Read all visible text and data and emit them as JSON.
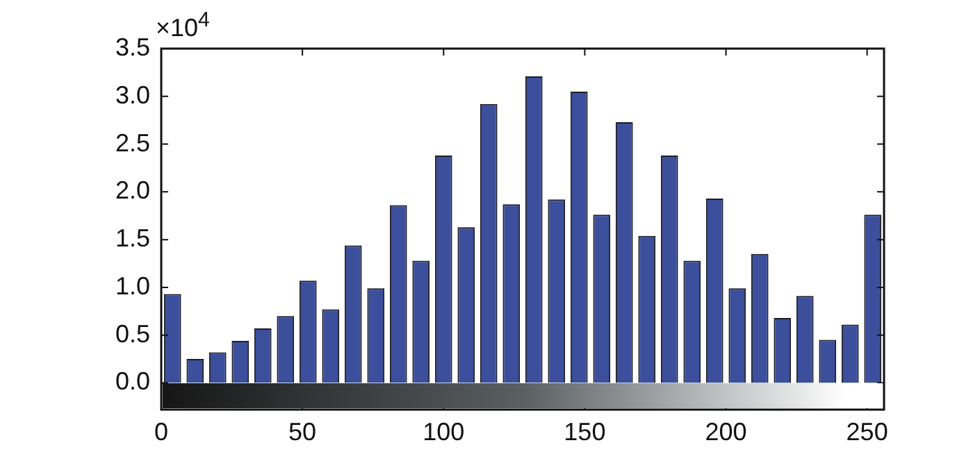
{
  "chart_data": {
    "type": "histogram",
    "bins": [
      0,
      8,
      16,
      24,
      32,
      40,
      48,
      56,
      64,
      72,
      80,
      88,
      96,
      104,
      112,
      120,
      128,
      136,
      144,
      152,
      160,
      168,
      176,
      184,
      192,
      200,
      208,
      216,
      224,
      232,
      240,
      248,
      256
    ],
    "values": [
      0.93,
      0.25,
      0.32,
      0.44,
      0.57,
      0.7,
      1.07,
      0.77,
      1.44,
      0.99,
      1.86,
      1.28,
      2.38,
      1.63,
      2.92,
      1.87,
      3.21,
      1.92,
      3.05,
      1.76,
      2.73,
      1.54,
      2.38,
      1.28,
      1.93,
      0.99,
      1.35,
      0.68,
      0.91,
      0.45,
      0.61,
      1.76
    ],
    "color": "#3b4f9c",
    "xlim": [
      0,
      256
    ],
    "xticks": [
      0,
      50,
      100,
      150,
      200,
      250
    ],
    "ylim": [
      -0.28,
      3.5
    ],
    "yticks": [
      {
        "value": 0,
        "label": "0.0"
      },
      0.5,
      {
        "value": 1,
        "label": "1.0"
      },
      1.5,
      {
        "value": 2,
        "label": "2.0"
      },
      2.5,
      {
        "value": 3,
        "label": "3.0"
      },
      3.5
    ],
    "annotations": [
      "×10$^{4}$"
    ],
    "grid": false,
    "legend": false
  }
}
